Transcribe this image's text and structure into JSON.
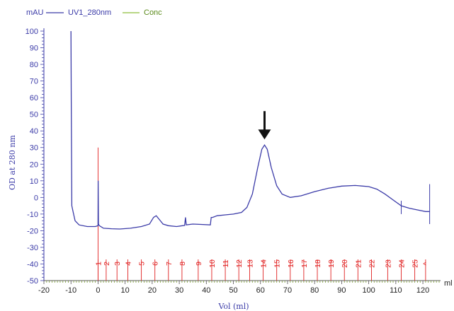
{
  "chart_data": {
    "type": "line",
    "units": {
      "y": "mAU",
      "x": "ml"
    },
    "ylabel": "OD at 280 nm",
    "xlabel": "Vol (ml)",
    "xlim": [
      -20,
      120
    ],
    "ylim": [
      -50,
      100
    ],
    "x_ticks": [
      -20,
      -10,
      0,
      10,
      20,
      30,
      40,
      50,
      60,
      70,
      80,
      90,
      100,
      110,
      120
    ],
    "y_ticks": [
      100,
      90,
      80,
      70,
      60,
      50,
      40,
      30,
      20,
      10,
      0,
      -10,
      -20,
      -30,
      -40,
      -50
    ],
    "legend": [
      {
        "name": "UV1_280nm",
        "color": "#3b3ba8"
      },
      {
        "name": "Conc",
        "color": "#8dbf3a"
      }
    ],
    "series": [
      {
        "name": "UV1_280nm",
        "color": "#3b3ba8",
        "points": [
          [
            -10,
            100
          ],
          [
            -9.9,
            60
          ],
          [
            -9.7,
            -5
          ],
          [
            -9.3,
            -8
          ],
          [
            -8.5,
            -14
          ],
          [
            -7,
            -16.5
          ],
          [
            -4,
            -17.5
          ],
          [
            -1,
            -17.5
          ],
          [
            0,
            -17
          ],
          [
            0.05,
            10
          ],
          [
            0.15,
            -16
          ],
          [
            0.5,
            -17
          ],
          [
            2,
            -18.5
          ],
          [
            5,
            -18.8
          ],
          [
            8,
            -19
          ],
          [
            12,
            -18.5
          ],
          [
            16,
            -17.5
          ],
          [
            19,
            -16
          ],
          [
            20.5,
            -12
          ],
          [
            21.5,
            -11
          ],
          [
            22.5,
            -13
          ],
          [
            24,
            -16
          ],
          [
            26,
            -17
          ],
          [
            29,
            -17.5
          ],
          [
            32,
            -16.8
          ],
          [
            32.3,
            -12
          ],
          [
            32.6,
            -16.5
          ],
          [
            35,
            -16
          ],
          [
            38,
            -16.2
          ],
          [
            41.5,
            -16.5
          ],
          [
            41.8,
            -12
          ],
          [
            42.3,
            -12
          ],
          [
            44,
            -11
          ],
          [
            47,
            -10.5
          ],
          [
            50,
            -10
          ],
          [
            53,
            -9
          ],
          [
            55,
            -6
          ],
          [
            57,
            2
          ],
          [
            59,
            18
          ],
          [
            60.5,
            29
          ],
          [
            61.5,
            31.5
          ],
          [
            62.5,
            29
          ],
          [
            64,
            18
          ],
          [
            66,
            7
          ],
          [
            68,
            2
          ],
          [
            71,
            0
          ],
          [
            75,
            1
          ],
          [
            80,
            3.5
          ],
          [
            85,
            5.5
          ],
          [
            90,
            6.8
          ],
          [
            95,
            7.2
          ],
          [
            100,
            6.5
          ],
          [
            103,
            5
          ],
          [
            106,
            2
          ],
          [
            109,
            -1.5
          ],
          [
            112,
            -5
          ],
          [
            115,
            -6.5
          ],
          [
            118,
            -7.5
          ],
          [
            121,
            -8.5
          ],
          [
            122.5,
            -8.5
          ]
        ]
      }
    ],
    "fraction_markers": {
      "labels": [
        "1",
        "2",
        "3",
        "4",
        "5",
        "6",
        "7",
        "8",
        "9",
        "10",
        "11",
        "12",
        "13",
        "14",
        "15",
        "16",
        "17",
        "18",
        "19",
        "20",
        "21",
        "22",
        "23",
        "24",
        "25",
        "^"
      ],
      "x": [
        0,
        3,
        7,
        11,
        16,
        21,
        26,
        31,
        37,
        42,
        47,
        52,
        56,
        61,
        66,
        71,
        76,
        81,
        86,
        91,
        96,
        101,
        107,
        112,
        117,
        121
      ],
      "color": "#e02020"
    },
    "peak_arrow": {
      "x": 61.5,
      "y": 31.5
    }
  }
}
